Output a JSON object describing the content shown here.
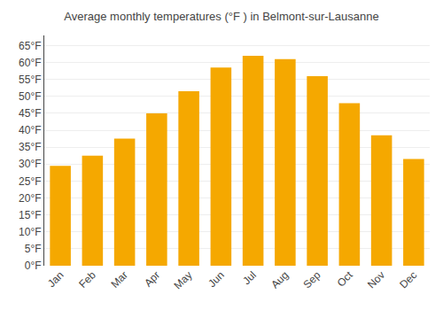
{
  "chart_data": {
    "type": "bar",
    "title": "Average monthly temperatures (°F ) in Belmont-sur-Lausanne",
    "categories": [
      "Jan",
      "Feb",
      "Mar",
      "Apr",
      "May",
      "Jun",
      "Jul",
      "Aug",
      "Sep",
      "Oct",
      "Nov",
      "Dec"
    ],
    "values": [
      29.5,
      32.5,
      37.5,
      45.0,
      51.5,
      58.5,
      62.0,
      61.0,
      56.0,
      48.0,
      38.5,
      31.5
    ],
    "color": "#F5A800",
    "ylim": [
      0,
      68
    ],
    "yticks": [
      {
        "value": 0,
        "label": "0°F"
      },
      {
        "value": 5,
        "label": "5°F"
      },
      {
        "value": 10,
        "label": "10°F"
      },
      {
        "value": 15,
        "label": "15°F"
      },
      {
        "value": 20,
        "label": "20°F"
      },
      {
        "value": 25,
        "label": "25°F"
      },
      {
        "value": 30,
        "label": "30°F"
      },
      {
        "value": 35,
        "label": "35°F"
      },
      {
        "value": 40,
        "label": "40°F"
      },
      {
        "value": 45,
        "label": "45°F"
      },
      {
        "value": 50,
        "label": "50°F"
      },
      {
        "value": 55,
        "label": "55°F"
      },
      {
        "value": 60,
        "label": "60°F"
      },
      {
        "value": 65,
        "label": "65°F"
      }
    ],
    "grid": true
  }
}
